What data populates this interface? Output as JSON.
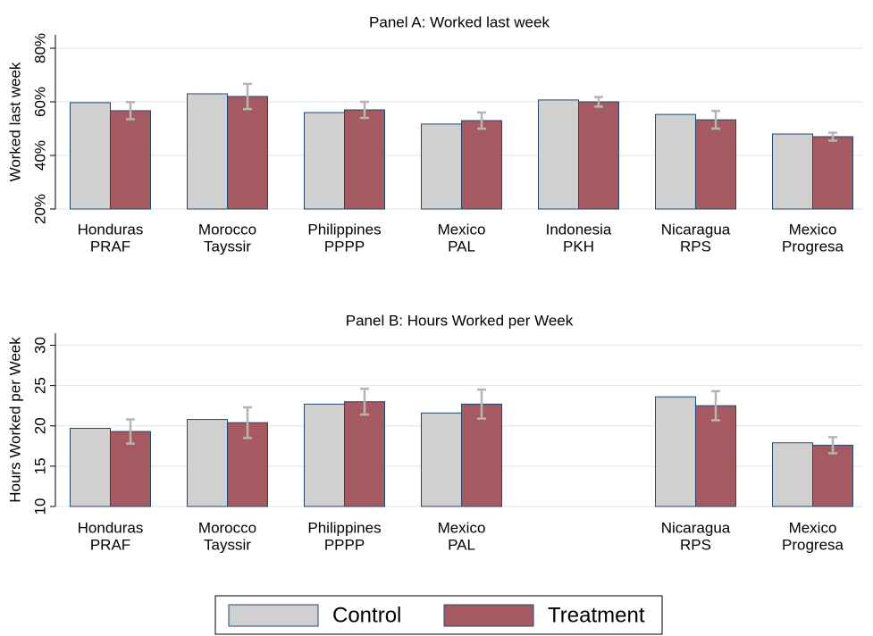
{
  "chart_data": [
    {
      "type": "bar",
      "title": "Panel A: Worked last week",
      "ylabel": "Worked last week",
      "categories": [
        [
          "Honduras",
          "PRAF"
        ],
        [
          "Morocco",
          "Tayssir"
        ],
        [
          "Philippines",
          "PPPP"
        ],
        [
          "Mexico",
          "PAL"
        ],
        [
          "Indonesia",
          "PKH"
        ],
        [
          "Nicaragua",
          "RPS"
        ],
        [
          "Mexico",
          "Progresa"
        ]
      ],
      "series": [
        {
          "color": "#d0d0d0",
          "values": [
            59.7,
            63,
            56,
            51.7,
            60.7,
            55.3,
            48
          ]
        },
        {
          "color": "#a45a60",
          "values": [
            56.7,
            62,
            57,
            53,
            60,
            53.3,
            47
          ],
          "errors": [
            3.2,
            4.7,
            3,
            3,
            1.8,
            3.3,
            1.5
          ]
        }
      ],
      "ylim": [
        20,
        85
      ],
      "yticks": [
        {
          "value": 20,
          "label": "20%"
        },
        {
          "value": 40,
          "label": "40%"
        },
        {
          "value": 60,
          "label": "60%"
        },
        {
          "value": 80,
          "label": "80%"
        }
      ],
      "grid": true
    },
    {
      "type": "bar",
      "title": "Panel B: Hours Worked per Week",
      "ylabel": "Hours Worked per Week",
      "categories": [
        [
          "Honduras",
          "PRAF"
        ],
        [
          "Morocco",
          "Tayssir"
        ],
        [
          "Philippines",
          "PPPP"
        ],
        [
          "Mexico",
          "PAL"
        ],
        null,
        [
          "Nicaragua",
          "RPS"
        ],
        [
          "Mexico",
          "Progresa"
        ]
      ],
      "series": [
        {
          "name": "Control",
          "color": "#d0d0d0",
          "values": [
            19.7,
            20.8,
            22.7,
            21.6,
            null,
            23.6,
            17.9
          ]
        },
        {
          "name": "Treatment",
          "color": "#a45a60",
          "values": [
            19.3,
            20.4,
            23,
            22.7,
            null,
            22.5,
            17.6
          ],
          "errors": [
            1.5,
            1.9,
            1.6,
            1.8,
            null,
            1.8,
            1
          ]
        }
      ],
      "ylim": [
        10,
        31.5
      ],
      "yticks": [
        10,
        15,
        20,
        25,
        30
      ],
      "grid": true,
      "legend": "bottom"
    }
  ]
}
